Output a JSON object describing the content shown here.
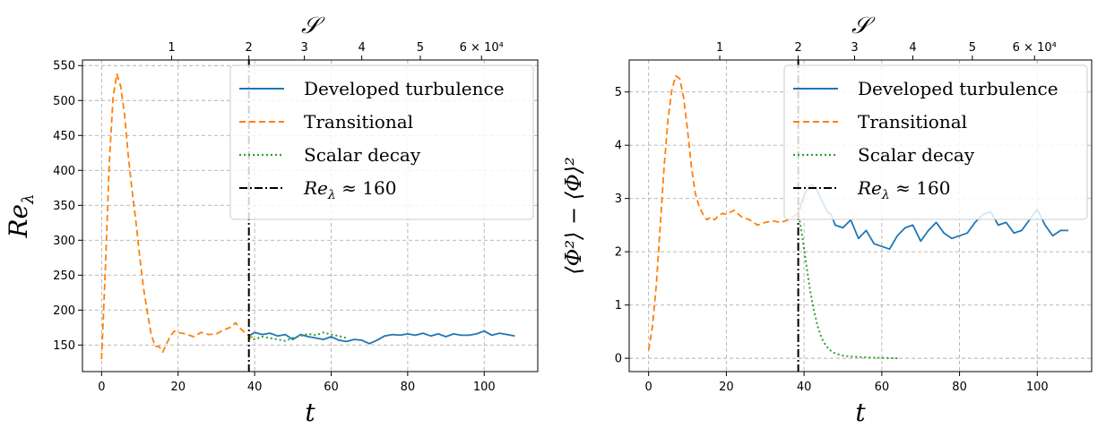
{
  "colors": {
    "developed": "#1f77b4",
    "transitional": "#ff7f0e",
    "scalar_decay": "#2ca02c",
    "marker": "#000000",
    "grid": "#b0b0b0"
  },
  "chart_data": [
    {
      "type": "line",
      "xlabel": "t",
      "ylabel": "Re_λ",
      "secondary_xlabel": "𝒮",
      "xlim": [
        -5,
        114
      ],
      "ylim": [
        112,
        558
      ],
      "xticks": [
        0,
        20,
        40,
        60,
        80,
        100
      ],
      "yticks": [
        150,
        200,
        250,
        300,
        350,
        400,
        450,
        500,
        550
      ],
      "secondary_xticks": [
        {
          "t": 18.3,
          "label": "1"
        },
        {
          "t": 38.5,
          "label": "2"
        },
        {
          "t": 53.0,
          "label": "3"
        },
        {
          "t": 68.0,
          "label": "4"
        },
        {
          "t": 83.3,
          "label": "5"
        },
        {
          "t": 99.3,
          "label": "6 × 10⁴"
        }
      ],
      "grid": true,
      "legend_position": "upper-right",
      "vline": {
        "x": 38.5,
        "label": "Re_λ ≈ 160"
      },
      "series": [
        {
          "name": "Developed turbulence",
          "style": "solid",
          "x": [
            38.5,
            40,
            42,
            44,
            46,
            48,
            50,
            52,
            54,
            56,
            58,
            60,
            62,
            64,
            66,
            68,
            70,
            72,
            74,
            76,
            78,
            80,
            82,
            84,
            86,
            88,
            90,
            92,
            94,
            96,
            98,
            100,
            102,
            104,
            106,
            108
          ],
          "y": [
            163,
            168,
            165,
            167,
            163,
            165,
            158,
            165,
            162,
            160,
            158,
            162,
            157,
            155,
            158,
            157,
            152,
            157,
            163,
            165,
            164,
            166,
            164,
            167,
            163,
            166,
            162,
            166,
            164,
            164,
            166,
            170,
            164,
            167,
            165,
            163
          ]
        },
        {
          "name": "Transitional",
          "style": "dashed",
          "x": [
            0,
            1,
            2,
            3,
            4,
            5,
            6,
            7,
            8,
            9,
            10,
            11,
            12,
            13,
            14,
            15,
            16,
            17,
            18,
            19,
            20,
            22,
            24,
            26,
            28,
            30,
            32,
            34,
            35,
            36,
            37,
            38,
            39,
            40
          ],
          "y": [
            130,
            260,
            410,
            505,
            538,
            520,
            480,
            420,
            370,
            325,
            275,
            230,
            195,
            165,
            148,
            148,
            140,
            152,
            163,
            170,
            168,
            166,
            162,
            168,
            165,
            166,
            172,
            176,
            182,
            175,
            170,
            165,
            162,
            160
          ]
        },
        {
          "name": "Scalar decay",
          "style": "dotted",
          "x": [
            38.5,
            40,
            42,
            44,
            46,
            48,
            50,
            52,
            54,
            56,
            58,
            60,
            62,
            64
          ],
          "y": [
            160,
            158,
            162,
            160,
            158,
            156,
            160,
            163,
            166,
            164,
            168,
            165,
            163,
            160
          ]
        }
      ]
    },
    {
      "type": "line",
      "xlabel": "t",
      "ylabel": "⟨Φ²⟩ − ⟨Φ⟩²",
      "secondary_xlabel": "𝒮",
      "xlim": [
        -5,
        114
      ],
      "ylim": [
        -0.25,
        5.6
      ],
      "xticks": [
        0,
        20,
        40,
        60,
        80,
        100
      ],
      "yticks": [
        0,
        1,
        2,
        3,
        4,
        5
      ],
      "secondary_xticks": [
        {
          "t": 18.3,
          "label": "1"
        },
        {
          "t": 38.5,
          "label": "2"
        },
        {
          "t": 53.0,
          "label": "3"
        },
        {
          "t": 68.0,
          "label": "4"
        },
        {
          "t": 83.3,
          "label": "5"
        },
        {
          "t": 99.3,
          "label": "6 × 10⁴"
        }
      ],
      "grid": true,
      "legend_position": "upper-right",
      "vline": {
        "x": 38.5,
        "label": "Re_λ ≈ 160"
      },
      "series": [
        {
          "name": "Developed turbulence",
          "style": "solid",
          "x": [
            38.5,
            40,
            41,
            42,
            43,
            44,
            45,
            46,
            47,
            48,
            50,
            52,
            54,
            56,
            58,
            60,
            62,
            64,
            66,
            68,
            70,
            72,
            74,
            76,
            78,
            80,
            82,
            84,
            86,
            88,
            90,
            92,
            94,
            96,
            98,
            100,
            102,
            104,
            106,
            108
          ],
          "y": [
            2.75,
            3.05,
            3.2,
            3.25,
            3.2,
            3.05,
            2.9,
            2.75,
            2.7,
            2.5,
            2.45,
            2.6,
            2.25,
            2.4,
            2.15,
            2.1,
            2.05,
            2.3,
            2.45,
            2.5,
            2.2,
            2.4,
            2.55,
            2.35,
            2.25,
            2.3,
            2.35,
            2.55,
            2.7,
            2.75,
            2.5,
            2.55,
            2.35,
            2.4,
            2.6,
            2.8,
            2.5,
            2.3,
            2.4,
            2.4
          ]
        },
        {
          "name": "Transitional",
          "style": "dashed",
          "x": [
            0,
            1,
            2,
            3,
            4,
            5,
            6,
            7,
            8,
            9,
            10,
            11,
            12,
            13,
            14,
            15,
            16,
            17,
            18,
            19,
            20,
            22,
            24,
            26,
            28,
            30,
            32,
            34,
            36,
            38,
            39,
            40
          ],
          "y": [
            0.15,
            0.6,
            1.4,
            2.5,
            3.6,
            4.5,
            5.05,
            5.3,
            5.25,
            4.9,
            4.3,
            3.6,
            3.1,
            2.85,
            2.7,
            2.6,
            2.65,
            2.6,
            2.68,
            2.72,
            2.7,
            2.78,
            2.65,
            2.6,
            2.5,
            2.55,
            2.58,
            2.55,
            2.6,
            2.7,
            2.8,
            3.0
          ]
        },
        {
          "name": "Scalar decay",
          "style": "dotted",
          "x": [
            38.5,
            39.5,
            40.5,
            41.5,
            42.5,
            43.5,
            44.5,
            45.5,
            46.5,
            48,
            50,
            52,
            55,
            58,
            61,
            64
          ],
          "y": [
            2.75,
            2.3,
            1.8,
            1.3,
            0.9,
            0.6,
            0.38,
            0.25,
            0.16,
            0.09,
            0.05,
            0.03,
            0.02,
            0.01,
            0.005,
            0.0
          ]
        }
      ]
    }
  ],
  "panels": [
    {
      "title_top": "𝒮",
      "xlabel_text": "t",
      "ylabel_main": "Re",
      "ylabel_sub": "λ",
      "legend": [
        {
          "label": "Developed turbulence",
          "style": "solid"
        },
        {
          "label": "Transitional",
          "style": "dashed"
        },
        {
          "label": "Scalar decay",
          "style": "dotted"
        },
        {
          "label": "Re",
          "label_sub": "λ",
          "label_rest": " ≈ 160",
          "style": "dashdot"
        }
      ]
    },
    {
      "title_top": "𝒮",
      "xlabel_text": "t",
      "ylabel_main": "⟨Φ²⟩ − ⟨Φ⟩²",
      "legend": [
        {
          "label": "Developed turbulence",
          "style": "solid"
        },
        {
          "label": "Transitional",
          "style": "dashed"
        },
        {
          "label": "Scalar decay",
          "style": "dotted"
        },
        {
          "label": "Re",
          "label_sub": "λ",
          "label_rest": " ≈ 160",
          "style": "dashdot"
        }
      ]
    }
  ]
}
